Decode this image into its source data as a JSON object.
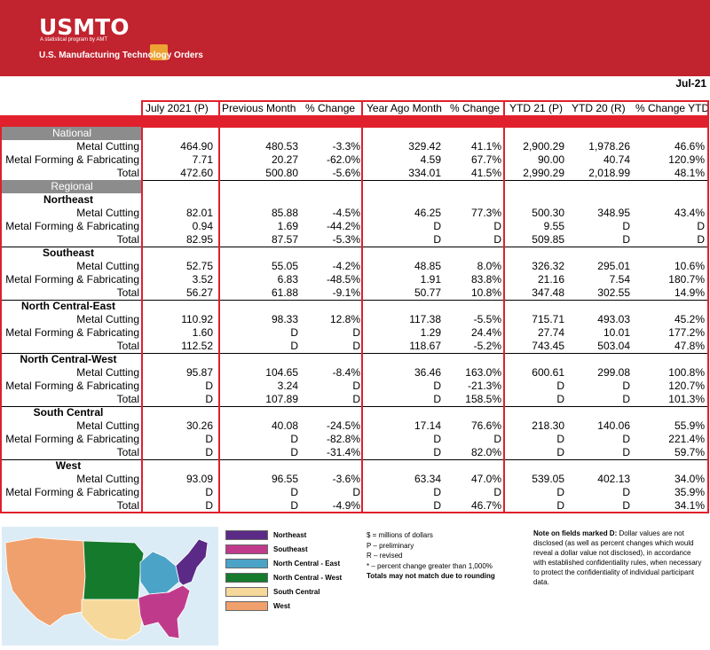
{
  "brand": {
    "logo": "USMTO",
    "tagline": "A statistical program by AMT",
    "subtitle": "U.S. Manufacturing Technology Orders"
  },
  "period_label": "Jul-21",
  "columns": [
    "July 2021 (P)",
    "Previous Month",
    "% Change",
    "Year Ago Month",
    "% Change",
    "YTD 21 (P)",
    "YTD 20 (R)",
    "% Change YTD"
  ],
  "sections": {
    "national": "National",
    "regional": "Regional"
  },
  "national_rows": [
    {
      "label": "Metal Cutting",
      "values": [
        "464.90",
        "480.53",
        "-3.3%",
        "329.42",
        "41.1%",
        "2,900.29",
        "1,978.26",
        "46.6%"
      ]
    },
    {
      "label": "Metal Forming & Fabricating",
      "values": [
        "7.71",
        "20.27",
        "-62.0%",
        "4.59",
        "67.7%",
        "90.00",
        "40.74",
        "120.9%"
      ]
    },
    {
      "label": "Total",
      "values": [
        "472.60",
        "500.80",
        "-5.6%",
        "334.01",
        "41.5%",
        "2,990.29",
        "2,018.99",
        "48.1%"
      ]
    }
  ],
  "regions": [
    {
      "name": "Northeast",
      "rows": [
        {
          "label": "Metal Cutting",
          "values": [
            "82.01",
            "85.88",
            "-4.5%",
            "46.25",
            "77.3%",
            "500.30",
            "348.95",
            "43.4%"
          ]
        },
        {
          "label": "Metal Forming & Fabricating",
          "values": [
            "0.94",
            "1.69",
            "-44.2%",
            "D",
            "D",
            "9.55",
            "D",
            "D"
          ]
        },
        {
          "label": "Total",
          "values": [
            "82.95",
            "87.57",
            "-5.3%",
            "D",
            "D",
            "509.85",
            "D",
            "D"
          ]
        }
      ]
    },
    {
      "name": "Southeast",
      "rows": [
        {
          "label": "Metal Cutting",
          "values": [
            "52.75",
            "55.05",
            "-4.2%",
            "48.85",
            "8.0%",
            "326.32",
            "295.01",
            "10.6%"
          ]
        },
        {
          "label": "Metal Forming & Fabricating",
          "values": [
            "3.52",
            "6.83",
            "-48.5%",
            "1.91",
            "83.8%",
            "21.16",
            "7.54",
            "180.7%"
          ]
        },
        {
          "label": "Total",
          "values": [
            "56.27",
            "61.88",
            "-9.1%",
            "50.77",
            "10.8%",
            "347.48",
            "302.55",
            "14.9%"
          ]
        }
      ]
    },
    {
      "name": "North Central-East",
      "rows": [
        {
          "label": "Metal Cutting",
          "values": [
            "110.92",
            "98.33",
            "12.8%",
            "117.38",
            "-5.5%",
            "715.71",
            "493.03",
            "45.2%"
          ]
        },
        {
          "label": "Metal Forming & Fabricating",
          "values": [
            "1.60",
            "D",
            "D",
            "1.29",
            "24.4%",
            "27.74",
            "10.01",
            "177.2%"
          ]
        },
        {
          "label": "Total",
          "values": [
            "112.52",
            "D",
            "D",
            "118.67",
            "-5.2%",
            "743.45",
            "503.04",
            "47.8%"
          ]
        }
      ]
    },
    {
      "name": "North Central-West",
      "rows": [
        {
          "label": "Metal Cutting",
          "values": [
            "95.87",
            "104.65",
            "-8.4%",
            "36.46",
            "163.0%",
            "600.61",
            "299.08",
            "100.8%"
          ]
        },
        {
          "label": "Metal Forming & Fabricating",
          "values": [
            "D",
            "3.24",
            "D",
            "D",
            "-21.3%",
            "D",
            "D",
            "120.7%"
          ]
        },
        {
          "label": "Total",
          "values": [
            "D",
            "107.89",
            "D",
            "D",
            "158.5%",
            "D",
            "D",
            "101.3%"
          ]
        }
      ]
    },
    {
      "name": "South Central",
      "rows": [
        {
          "label": "Metal Cutting",
          "values": [
            "30.26",
            "40.08",
            "-24.5%",
            "17.14",
            "76.6%",
            "218.30",
            "140.06",
            "55.9%"
          ]
        },
        {
          "label": "Metal Forming & Fabricating",
          "values": [
            "D",
            "D",
            "-82.8%",
            "D",
            "D",
            "D",
            "D",
            "221.4%"
          ]
        },
        {
          "label": "Total",
          "values": [
            "D",
            "D",
            "-31.4%",
            "D",
            "82.0%",
            "D",
            "D",
            "59.7%"
          ]
        }
      ]
    },
    {
      "name": "West",
      "rows": [
        {
          "label": "Metal Cutting",
          "values": [
            "93.09",
            "96.55",
            "-3.6%",
            "63.34",
            "47.0%",
            "539.05",
            "402.13",
            "34.0%"
          ]
        },
        {
          "label": "Metal Forming & Fabricating",
          "values": [
            "D",
            "D",
            "D",
            "D",
            "D",
            "D",
            "D",
            "35.9%"
          ]
        },
        {
          "label": "Total",
          "values": [
            "D",
            "D",
            "-4.9%",
            "D",
            "46.7%",
            "D",
            "D",
            "34.1%"
          ]
        }
      ]
    }
  ],
  "legend": [
    {
      "label": "Northeast",
      "color": "#5b2a86"
    },
    {
      "label": "Southeast",
      "color": "#c03a8c"
    },
    {
      "label": "North Central - East",
      "color": "#4ba3c7"
    },
    {
      "label": "North Central - West",
      "color": "#157a2c"
    },
    {
      "label": "South Central",
      "color": "#f6d99a"
    },
    {
      "label": "West",
      "color": "#f0a06c"
    }
  ],
  "key_notes": [
    "$ = millions of dollars",
    "P – preliminary",
    "R – revised",
    "* – percent change greater than 1,000%",
    "Totals may not match due to rounding"
  ],
  "d_note": {
    "title": "Note on fields marked D:",
    "text": " Dollar values are not disclosed (as well as percent changes which would reveal a dollar value not disclosed), in accordance with established confidentiality rules, when necessary to protect the confidentiality of individual participant data."
  }
}
